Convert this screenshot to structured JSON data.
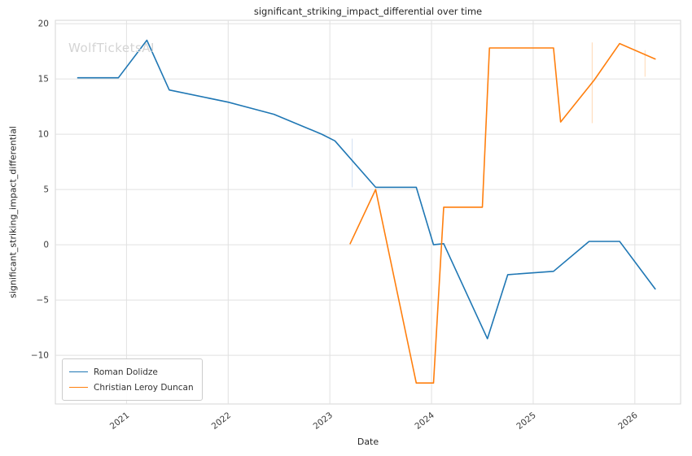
{
  "chart_data": {
    "type": "line",
    "title": "significant_striking_impact_differential over time",
    "xlabel": "Date",
    "ylabel": "significant_striking_impact_differential",
    "watermark": "WolfTicketsAI",
    "grid": true,
    "legend_position": "lower left",
    "x_ticks": [
      2021,
      2022,
      2023,
      2024,
      2025,
      2026
    ],
    "y_ticks": [
      -10,
      -5,
      0,
      5,
      10,
      15,
      20
    ],
    "x_range": [
      2020.3,
      2026.45
    ],
    "y_range": [
      -14.4,
      20.3
    ],
    "series": [
      {
        "name": "Roman Dolidze",
        "color": "#1f77b4",
        "x": [
          2020.52,
          2020.92,
          2021.2,
          2021.42,
          2022.0,
          2022.45,
          2022.92,
          2023.05,
          2023.45,
          2023.85,
          2024.02,
          2024.12,
          2024.55,
          2024.75,
          2025.2,
          2025.55,
          2025.85,
          2026.2
        ],
        "y": [
          15.1,
          15.1,
          18.5,
          14.0,
          12.9,
          11.8,
          10.0,
          9.4,
          5.2,
          5.2,
          0.0,
          0.1,
          -8.5,
          -2.7,
          -2.4,
          0.3,
          0.3,
          -4.0
        ]
      },
      {
        "name": "Christian Leroy Duncan",
        "color": "#ff7f0e",
        "x": [
          2023.2,
          2023.45,
          2023.85,
          2024.02,
          2024.12,
          2024.5,
          2024.57,
          2025.2,
          2025.27,
          2025.6,
          2025.85,
          2026.2
        ],
        "y": [
          0.1,
          5.0,
          -12.5,
          -12.5,
          3.4,
          3.4,
          17.8,
          17.8,
          11.1,
          14.9,
          18.2,
          16.8
        ]
      }
    ],
    "event_markers": [
      {
        "x": 2023.22,
        "y1": 5.2,
        "y2": 9.6,
        "color": "#aec7e8"
      },
      {
        "x": 2025.58,
        "y1": 11.0,
        "y2": 18.3,
        "color": "#ffbb78"
      },
      {
        "x": 2026.1,
        "y1": 15.2,
        "y2": 17.6,
        "color": "#ffbb78"
      }
    ]
  }
}
